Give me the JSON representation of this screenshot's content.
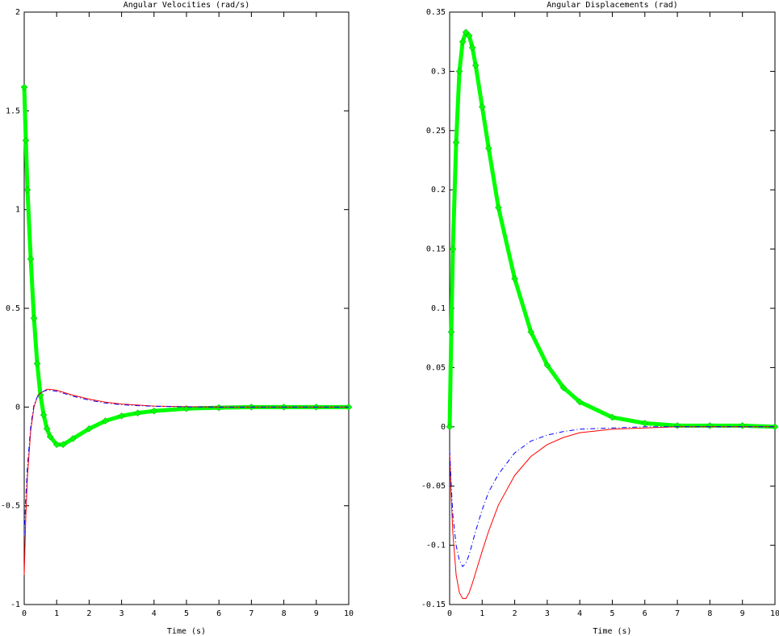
{
  "chart_data": [
    {
      "type": "line",
      "title": "Angular Velocities (rad/s)",
      "x_label": "Time (s)",
      "x": [
        0,
        0.05,
        0.1,
        0.2,
        0.3,
        0.4,
        0.5,
        0.6,
        0.7,
        0.8,
        1,
        1.2,
        1.5,
        2,
        2.5,
        3,
        3.5,
        4,
        5,
        6,
        7,
        8,
        9,
        10
      ],
      "series": [
        {
          "color": "#00ff00",
          "style": "points",
          "values": [
            1.62,
            1.35,
            1.1,
            0.75,
            0.45,
            0.22,
            0.06,
            -0.04,
            -0.11,
            -0.15,
            -0.19,
            -0.19,
            -0.16,
            -0.11,
            -0.07,
            -0.045,
            -0.03,
            -0.02,
            -0.008,
            -0.003,
            0,
            0,
            0,
            0
          ]
        },
        {
          "color": "#ff0000",
          "style": "solid",
          "values": [
            -0.85,
            -0.55,
            -0.35,
            -0.12,
            0,
            0.05,
            0.07,
            0.08,
            0.09,
            0.09,
            0.085,
            0.075,
            0.06,
            0.04,
            0.025,
            0.015,
            0.01,
            0.005,
            0.002,
            0,
            0,
            0,
            0,
            0
          ]
        },
        {
          "color": "#0000ff",
          "style": "dashdot",
          "values": [
            -0.65,
            -0.45,
            -0.3,
            -0.1,
            0.01,
            0.05,
            0.07,
            0.08,
            0.085,
            0.085,
            0.08,
            0.07,
            0.055,
            0.035,
            0.02,
            0.012,
            0.007,
            0.004,
            0.001,
            0,
            0,
            0,
            0,
            0
          ]
        }
      ],
      "xlim": [
        0,
        10
      ],
      "xticks": [
        0,
        1,
        2,
        3,
        4,
        5,
        6,
        7,
        8,
        9,
        10
      ],
      "ylim": [
        -1,
        2
      ],
      "yticks": [
        -1,
        -0.5,
        0,
        0.5,
        1,
        1.5,
        2
      ]
    },
    {
      "type": "line",
      "title": "Angular Displacements (rad)",
      "x_label": "Time (s)",
      "x": [
        0,
        0.05,
        0.1,
        0.2,
        0.3,
        0.4,
        0.5,
        0.6,
        0.7,
        0.8,
        1,
        1.2,
        1.5,
        2,
        2.5,
        3,
        3.5,
        4,
        5,
        6,
        7,
        8,
        9,
        10
      ],
      "series": [
        {
          "color": "#00ff00",
          "style": "points",
          "values": [
            0,
            0.08,
            0.15,
            0.24,
            0.3,
            0.325,
            0.333,
            0.33,
            0.32,
            0.305,
            0.27,
            0.235,
            0.185,
            0.125,
            0.08,
            0.052,
            0.033,
            0.021,
            0.008,
            0.003,
            0.001,
            0.001,
            0.001,
            0
          ]
        },
        {
          "color": "#ff0000",
          "style": "solid",
          "values": [
            -0.02,
            -0.06,
            -0.09,
            -0.125,
            -0.14,
            -0.145,
            -0.145,
            -0.14,
            -0.132,
            -0.123,
            -0.105,
            -0.088,
            -0.066,
            -0.041,
            -0.025,
            -0.015,
            -0.009,
            -0.005,
            -0.002,
            -0.001,
            0,
            0,
            0,
            0
          ]
        },
        {
          "color": "#0000ff",
          "style": "dashdot",
          "values": [
            -0.02,
            -0.05,
            -0.075,
            -0.1,
            -0.113,
            -0.118,
            -0.115,
            -0.108,
            -0.098,
            -0.088,
            -0.07,
            -0.055,
            -0.04,
            -0.022,
            -0.012,
            -0.007,
            -0.004,
            -0.002,
            -0.001,
            0,
            0,
            0,
            0,
            0
          ]
        }
      ],
      "xlim": [
        0,
        10
      ],
      "xticks": [
        0,
        1,
        2,
        3,
        4,
        5,
        6,
        7,
        8,
        9,
        10
      ],
      "ylim": [
        -0.15,
        0.35
      ],
      "yticks": [
        -0.15,
        -0.1,
        -0.05,
        0,
        0.05,
        0.1,
        0.15,
        0.2,
        0.25,
        0.3,
        0.35
      ]
    }
  ]
}
